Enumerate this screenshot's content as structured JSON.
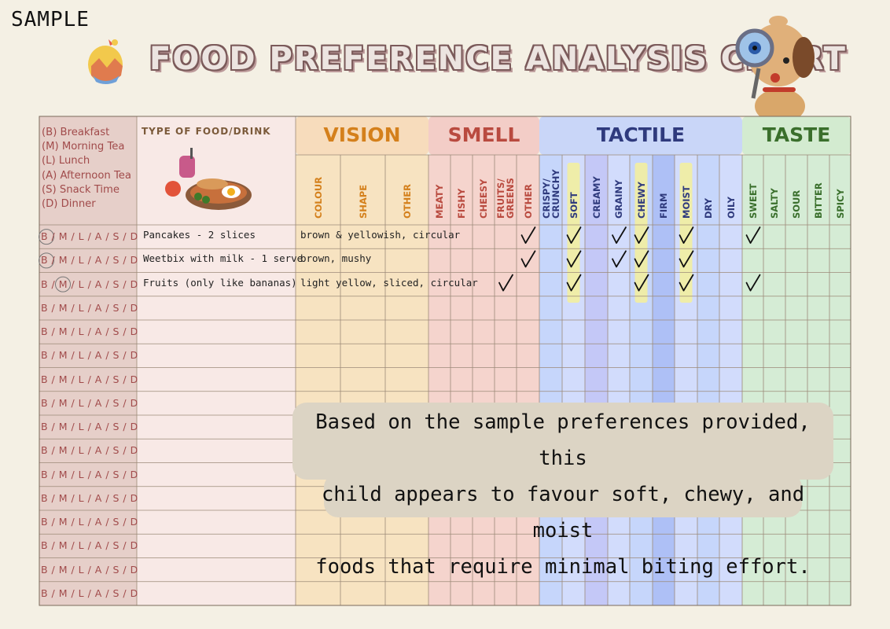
{
  "watermark": "SAMPLE",
  "title": "FOOD PREFERENCE ANALYSIS CHART",
  "legend": [
    "(B) Breakfast",
    "(M) Morning Tea",
    "(L) Lunch",
    "(A) Afternoon Tea",
    "(S) Snack Time",
    "(D) Dinner"
  ],
  "food_header": "TYPE OF FOOD/DRINK",
  "groups": [
    {
      "name": "VISION",
      "color": "#d4801c",
      "bg": "#f7e3c1",
      "header_bg": "#f7dcbc"
    },
    {
      "name": "SMELL",
      "color": "#b94a3f",
      "bg": "#f5d4cd",
      "header_bg": "#f3cdc7"
    },
    {
      "name": "TACTILE",
      "color": "#2f3a7d",
      "bg": "#cdd9fb",
      "header_bg": "#c9d6f8"
    },
    {
      "name": "TASTE",
      "color": "#3a6f2c",
      "bg": "#d5ecd5",
      "header_bg": "#d3ebd0"
    }
  ],
  "subcolumns": {
    "vision": [
      "COLOUR",
      "SHAPE",
      "OTHER"
    ],
    "smell": [
      "MEATY",
      "FISHY",
      "CHEESY",
      "FRUITS/\nGREENS",
      "OTHER"
    ],
    "tactile": [
      "CRISPY/\nCRUNCHY",
      "SOFT",
      "CREAMY",
      "GRAINY",
      "CHEWY",
      "FIRM",
      "MOIST",
      "DRY",
      "OILY"
    ],
    "taste": [
      "SWEET",
      "SALTY",
      "SOUR",
      "BITTER",
      "SPICY"
    ]
  },
  "meal_row_text": "B / M / L / A / S / D",
  "rows": [
    {
      "meal_circled": "B",
      "food": "Pancakes - 2 slices",
      "vision": "brown & yellowish, circular",
      "checks": [
        "smell.OTHER",
        "tactile.SOFT",
        "tactile.GRAINY",
        "tactile.CHEWY",
        "tactile.MOIST",
        "taste.SWEET"
      ]
    },
    {
      "meal_circled": "B",
      "food": "Weetbix with milk - 1 serve",
      "vision": "brown, mushy",
      "checks": [
        "smell.OTHER",
        "tactile.SOFT",
        "tactile.GRAINY",
        "tactile.CHEWY",
        "tactile.MOIST"
      ]
    },
    {
      "meal_circled": "M",
      "food": "Fruits (only like bananas)",
      "vision": "light yellow, sliced, circular",
      "checks": [
        "smell.FRUITS/GREENS",
        "tactile.SOFT",
        "tactile.CHEWY",
        "tactile.MOIST",
        "taste.SWEET"
      ]
    }
  ],
  "empty_rows": 13,
  "highlighted_tactile": [
    "SOFT",
    "CHEWY",
    "MOIST"
  ],
  "note": "Based on the sample preferences provided, this child appears to favour soft, chewy, and moist foods that require minimal biting effort.",
  "note_lines": [
    "Based on the sample preferences provided, this",
    "child appears to favour soft, chewy, and moist",
    "foods that require minimal biting effort."
  ]
}
